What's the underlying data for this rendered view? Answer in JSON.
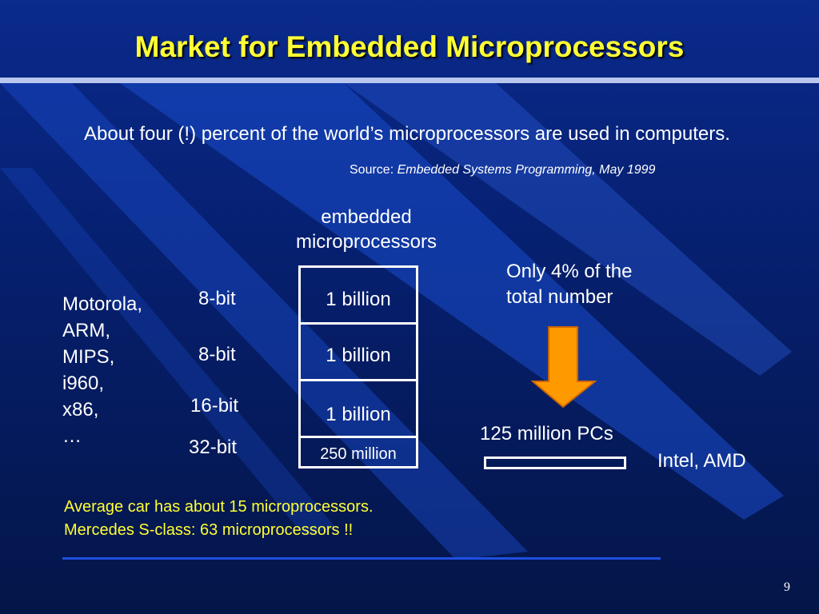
{
  "title": "Market for Embedded Microprocessors",
  "intro": "About four (!) percent of the world’s microprocessors are used in computers.",
  "source": {
    "label": "Source: ",
    "publication": "Embedded Systems Programming, May 1999"
  },
  "column_heading": {
    "line1": "embedded",
    "line2": "microprocessors"
  },
  "vendors": [
    "Motorola,",
    "ARM,",
    "MIPS,",
    "i960,",
    "x86,",
    "…"
  ],
  "bit_widths": [
    "8-bit",
    "8-bit",
    "16-bit",
    "32-bit"
  ],
  "volumes": [
    "1 billion",
    "1 billion",
    "1 billion",
    "250 million"
  ],
  "note": {
    "line1": "Only 4% of the",
    "line2": "total number"
  },
  "pcs": {
    "label": "125 million PCs",
    "makers": "Intel, AMD"
  },
  "car_facts": [
    "Average car has about 15 microprocessors.",
    "Mercedes S-class: 63 microprocessors !!"
  ],
  "page_number": "9",
  "colors": {
    "title": "#ffff33",
    "car_text": "#ffff33",
    "arrow": "#ff9900",
    "background": "#062070"
  }
}
